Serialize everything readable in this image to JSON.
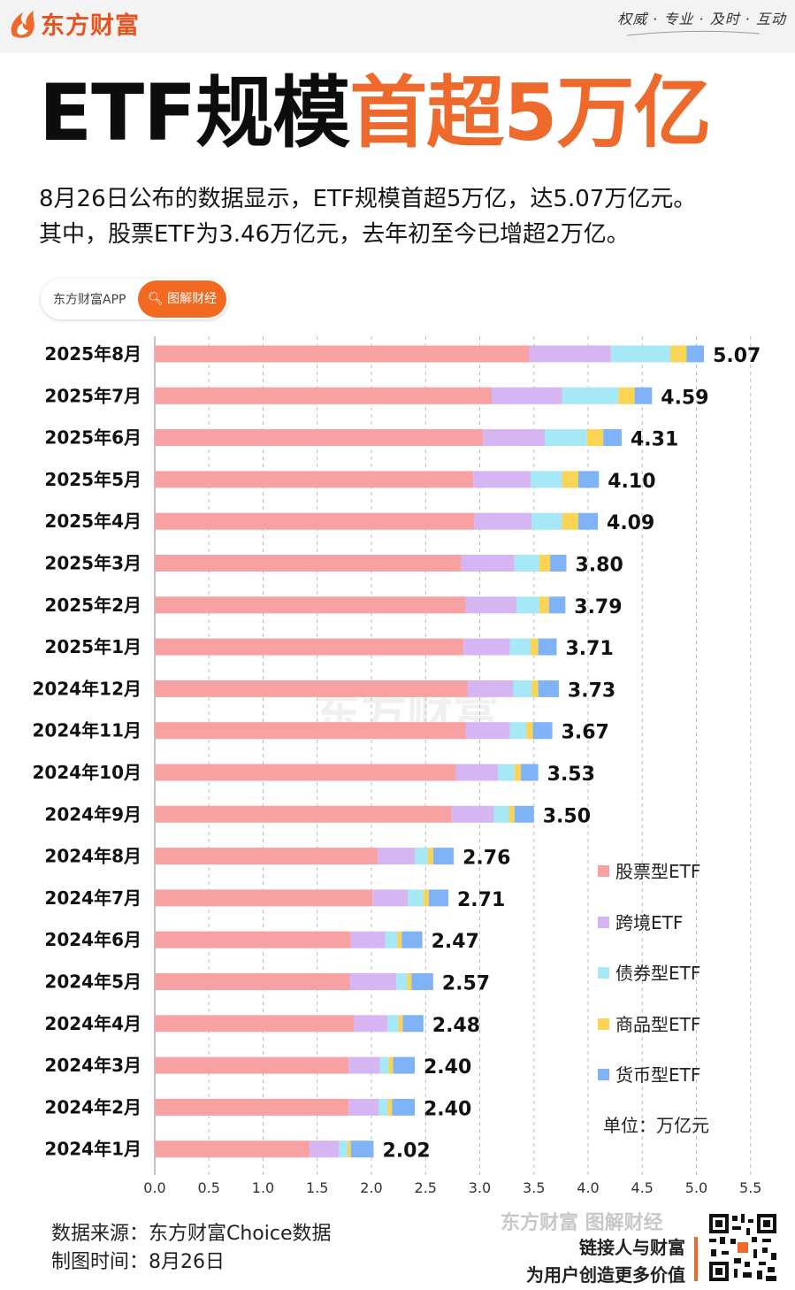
{
  "brand": {
    "logo_text": "东方财富",
    "slogan": "权威 · 专业 · 及时 · 互动"
  },
  "headline": {
    "part1": "ETF规模",
    "part2": "首超5万亿"
  },
  "description": {
    "line1": "8月26日公布的数据显示，ETF规模首超5万亿，达5.07万亿元。",
    "line2": "其中，股票ETF为3.46万亿元，去年初至今已增超2万亿。"
  },
  "pill": {
    "left_label": "东方财富APP",
    "right_label": "图解财经"
  },
  "chart_data": {
    "type": "bar",
    "orientation": "horizontal",
    "stacked": true,
    "categories": [
      "2025年8月",
      "2025年7月",
      "2025年6月",
      "2025年5月",
      "2025年4月",
      "2025年3月",
      "2025年2月",
      "2025年1月",
      "2024年12月",
      "2024年11月",
      "2024年10月",
      "2024年9月",
      "2024年8月",
      "2024年7月",
      "2024年6月",
      "2024年5月",
      "2024年4月",
      "2024年3月",
      "2024年2月",
      "2024年1月"
    ],
    "series": [
      {
        "name": "股票型ETF",
        "color": "#f7a1a3",
        "values": [
          3.46,
          3.11,
          3.03,
          2.94,
          2.95,
          2.83,
          2.87,
          2.85,
          2.89,
          2.87,
          2.78,
          2.74,
          2.06,
          2.01,
          1.81,
          1.8,
          1.84,
          1.79,
          1.79,
          1.43
        ]
      },
      {
        "name": "跨境ETF",
        "color": "#d5b6f3",
        "values": [
          0.75,
          0.65,
          0.57,
          0.53,
          0.53,
          0.49,
          0.47,
          0.43,
          0.42,
          0.41,
          0.39,
          0.39,
          0.34,
          0.33,
          0.32,
          0.43,
          0.31,
          0.29,
          0.28,
          0.27
        ]
      },
      {
        "name": "债券型ETF",
        "color": "#a6e8f5",
        "values": [
          0.55,
          0.52,
          0.39,
          0.29,
          0.28,
          0.23,
          0.21,
          0.19,
          0.17,
          0.15,
          0.15,
          0.14,
          0.12,
          0.14,
          0.11,
          0.1,
          0.1,
          0.08,
          0.08,
          0.08
        ]
      },
      {
        "name": "商品型ETF",
        "color": "#f9d455",
        "values": [
          0.15,
          0.15,
          0.15,
          0.15,
          0.15,
          0.1,
          0.09,
          0.07,
          0.06,
          0.06,
          0.06,
          0.05,
          0.05,
          0.05,
          0.04,
          0.04,
          0.04,
          0.04,
          0.04,
          0.03
        ]
      },
      {
        "name": "货币型ETF",
        "color": "#7fb3f5",
        "values": [
          0.16,
          0.16,
          0.17,
          0.19,
          0.18,
          0.15,
          0.15,
          0.17,
          0.19,
          0.18,
          0.16,
          0.18,
          0.19,
          0.18,
          0.19,
          0.2,
          0.19,
          0.2,
          0.21,
          0.21
        ]
      }
    ],
    "totals": [
      "5.07",
      "4.59",
      "4.31",
      "4.10",
      "4.09",
      "3.80",
      "3.79",
      "3.71",
      "3.73",
      "3.67",
      "3.53",
      "3.50",
      "2.76",
      "2.71",
      "2.47",
      "2.57",
      "2.48",
      "2.40",
      "2.40",
      "2.02"
    ],
    "x_ticks": [
      "0.0",
      "0.5",
      "1.0",
      "1.5",
      "2.0",
      "2.5",
      "3.0",
      "3.5",
      "4.0",
      "4.5",
      "5.0",
      "5.5"
    ],
    "xlim": [
      0,
      5.5
    ],
    "grid": "vertical dashed",
    "legend_position": "bottom-right",
    "unit": "单位：万亿元",
    "watermark": "东方财富"
  },
  "footer": {
    "source": "数据来源：东方财富Choice数据",
    "date": "制图时间：8月26日",
    "watermark": "东方财富 图解财经",
    "tagline1": "链接人与财富",
    "tagline2": "为用户创造更多价值"
  }
}
